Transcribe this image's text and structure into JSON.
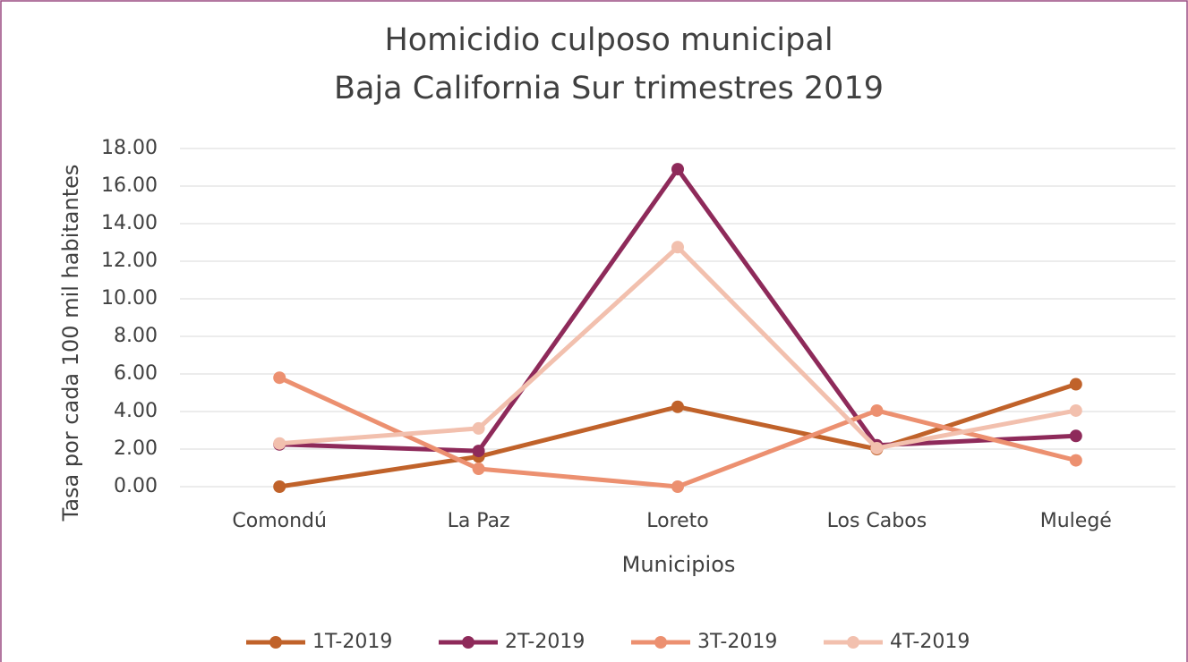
{
  "chart_data": {
    "type": "line",
    "title": "Homicidio culposo municipal",
    "subtitle": "Baja California Sur trimestres 2019",
    "x_label": "Municipios",
    "y_label": "Tasa por cada 100 mil habitantes",
    "categories": [
      "Comondú",
      "La Paz",
      "Loreto",
      "Los Cabos",
      "Mulegé"
    ],
    "series": [
      {
        "name": "1T-2019",
        "color": "#c0622a",
        "values": [
          0,
          1.6,
          4.25,
          2.0,
          5.45
        ]
      },
      {
        "name": "2T-2019",
        "color": "#8e2a5a",
        "values": [
          2.25,
          1.9,
          16.9,
          2.2,
          2.7
        ]
      },
      {
        "name": "3T-2019",
        "color": "#ec9070",
        "values": [
          5.8,
          0.95,
          0,
          4.05,
          1.4
        ]
      },
      {
        "name": "4T-2019",
        "color": "#f2c0ae",
        "values": [
          2.3,
          3.1,
          12.75,
          2.05,
          4.05
        ]
      }
    ],
    "ylim": [
      0,
      18
    ],
    "yticks": [
      {
        "value": 0,
        "label": "0.00"
      },
      {
        "value": 2,
        "label": "2.00"
      },
      {
        "value": 4,
        "label": "4.00"
      },
      {
        "value": 6,
        "label": "6.00"
      },
      {
        "value": 8,
        "label": "8.00"
      },
      {
        "value": 10,
        "label": "10.00"
      },
      {
        "value": 12,
        "label": "12.00"
      },
      {
        "value": 14,
        "label": "14.00"
      },
      {
        "value": 16,
        "label": "16.00"
      },
      {
        "value": 18,
        "label": "18.00"
      }
    ],
    "grid": true,
    "legend": "bottom"
  }
}
